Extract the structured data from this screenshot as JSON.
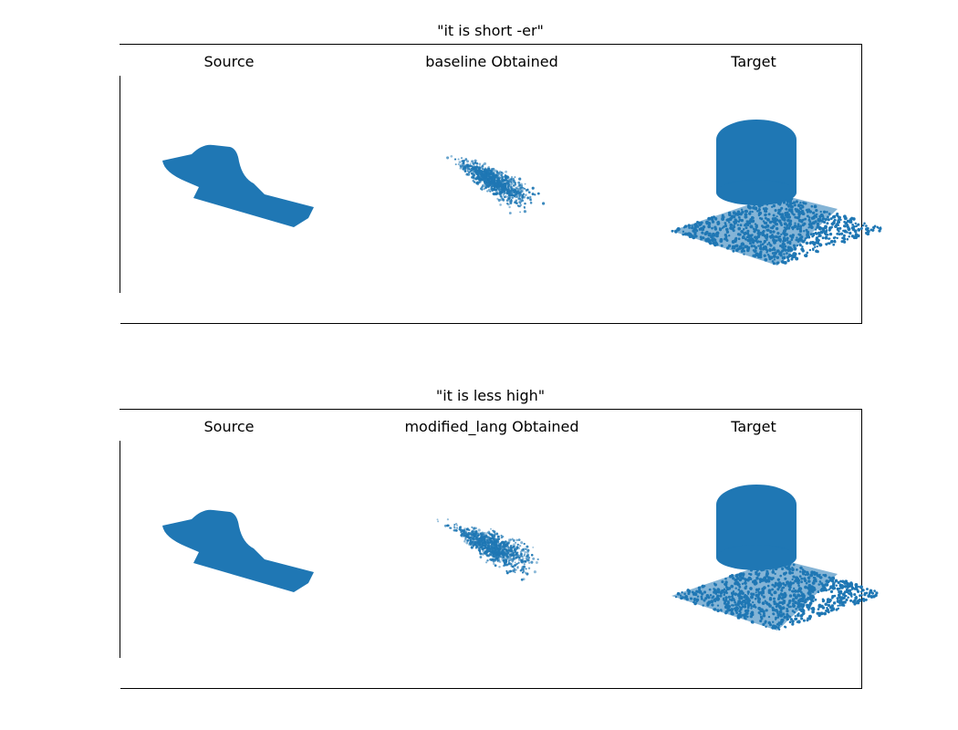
{
  "figure": {
    "rows": [
      {
        "title": "\"it is short -er\"",
        "subplots": [
          "Source",
          "baseline Obtained",
          "Target"
        ]
      },
      {
        "title": "\"it is less high\"",
        "subplots": [
          "Source",
          "modified_lang Obtained",
          "Target"
        ]
      }
    ]
  },
  "colors": {
    "points": "#1f77b4",
    "frame": "#000000"
  }
}
